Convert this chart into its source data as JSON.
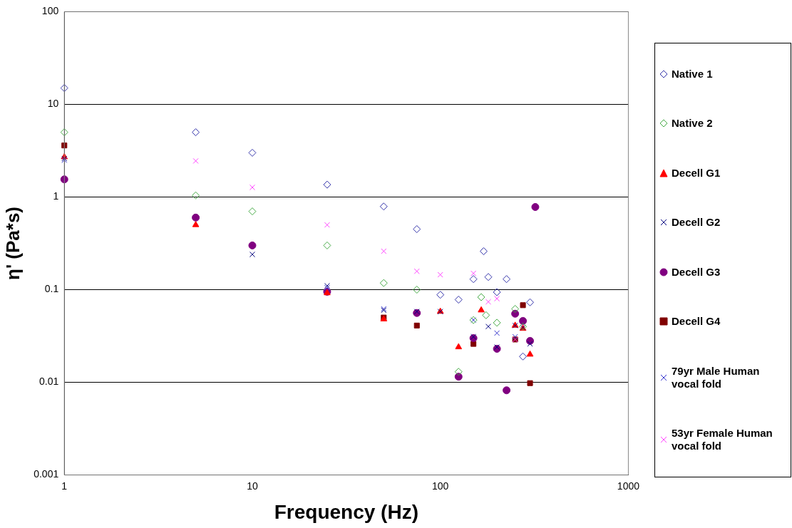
{
  "chart_data": {
    "type": "scatter",
    "xlabel": "Frequency (Hz)",
    "ylabel": "η' (Pa*s)",
    "log": "xy",
    "xlim": [
      1,
      1000
    ],
    "xticks": [
      1,
      10,
      100,
      1000
    ],
    "ylim": [
      0.001,
      100
    ],
    "yticks": [
      0.001,
      0.01,
      0.1,
      1,
      10,
      100
    ],
    "grid": "y",
    "legend": "right",
    "series": [
      {
        "name": "Native 1",
        "color": "#3333aa",
        "marker": "diamond",
        "x": [
          1,
          5,
          10,
          25,
          50,
          75,
          100,
          125,
          150,
          170,
          180,
          200,
          225,
          275,
          300
        ],
        "values": [
          15,
          5,
          3,
          1.36,
          0.79,
          0.45,
          0.088,
          0.078,
          0.13,
          0.26,
          0.137,
          0.094,
          0.13,
          0.019,
          0.073
        ]
      },
      {
        "name": "Native 2",
        "color": "#44aa44",
        "marker": "diamond",
        "x": [
          1,
          5,
          10,
          25,
          50,
          75,
          125,
          150,
          165,
          175,
          200,
          250,
          275
        ],
        "values": [
          5,
          1.04,
          0.7,
          0.3,
          0.118,
          0.1,
          0.013,
          0.047,
          0.083,
          0.053,
          0.044,
          0.062,
          0.04
        ]
      },
      {
        "name": "Decell G1",
        "color": "#ff0000",
        "marker": "triangle",
        "x": [
          1,
          5,
          25,
          50,
          100,
          125,
          165,
          250,
          275,
          300
        ],
        "values": [
          2.7,
          0.5,
          0.092,
          0.048,
          0.058,
          0.024,
          0.06,
          0.041,
          0.038,
          0.02
        ]
      },
      {
        "name": "Decell G2",
        "color": "#000080",
        "marker": "cross",
        "x": [
          1,
          10,
          25,
          50,
          75,
          100,
          150,
          180,
          200,
          250,
          275,
          300
        ],
        "values": [
          2.6,
          0.24,
          0.11,
          0.06,
          0.058,
          0.058,
          0.031,
          0.04,
          0.024,
          0.041,
          0.039,
          0.026
        ]
      },
      {
        "name": "Decell G3",
        "color": "#800080",
        "marker": "circle",
        "x": [
          1,
          5,
          10,
          25,
          75,
          125,
          150,
          200,
          225,
          250,
          275,
          300,
          320
        ],
        "values": [
          1.55,
          0.6,
          0.3,
          0.095,
          0.056,
          0.0115,
          0.03,
          0.023,
          0.0082,
          0.055,
          0.046,
          0.028,
          0.78
        ]
      },
      {
        "name": "Decell G4",
        "color": "#800000",
        "marker": "square",
        "x": [
          1,
          50,
          75,
          150,
          250,
          275,
          300
        ],
        "values": [
          3.6,
          0.05,
          0.041,
          0.026,
          0.029,
          0.068,
          0.0098
        ]
      },
      {
        "name": "79yr Male Human vocal fold",
        "color": "#3333cc",
        "marker": "cross",
        "x": [
          1,
          25,
          50,
          150,
          200,
          250
        ],
        "values": [
          2.5,
          0.105,
          0.062,
          0.047,
          0.034,
          0.031
        ]
      },
      {
        "name": "53yr Female Human vocal fold",
        "color": "#ff44ff",
        "marker": "cross",
        "x": [
          5,
          10,
          25,
          50,
          75,
          100,
          150,
          180,
          200,
          250
        ],
        "values": [
          2.45,
          1.27,
          0.5,
          0.26,
          0.158,
          0.145,
          0.15,
          0.074,
          0.08,
          0.029
        ]
      }
    ]
  }
}
